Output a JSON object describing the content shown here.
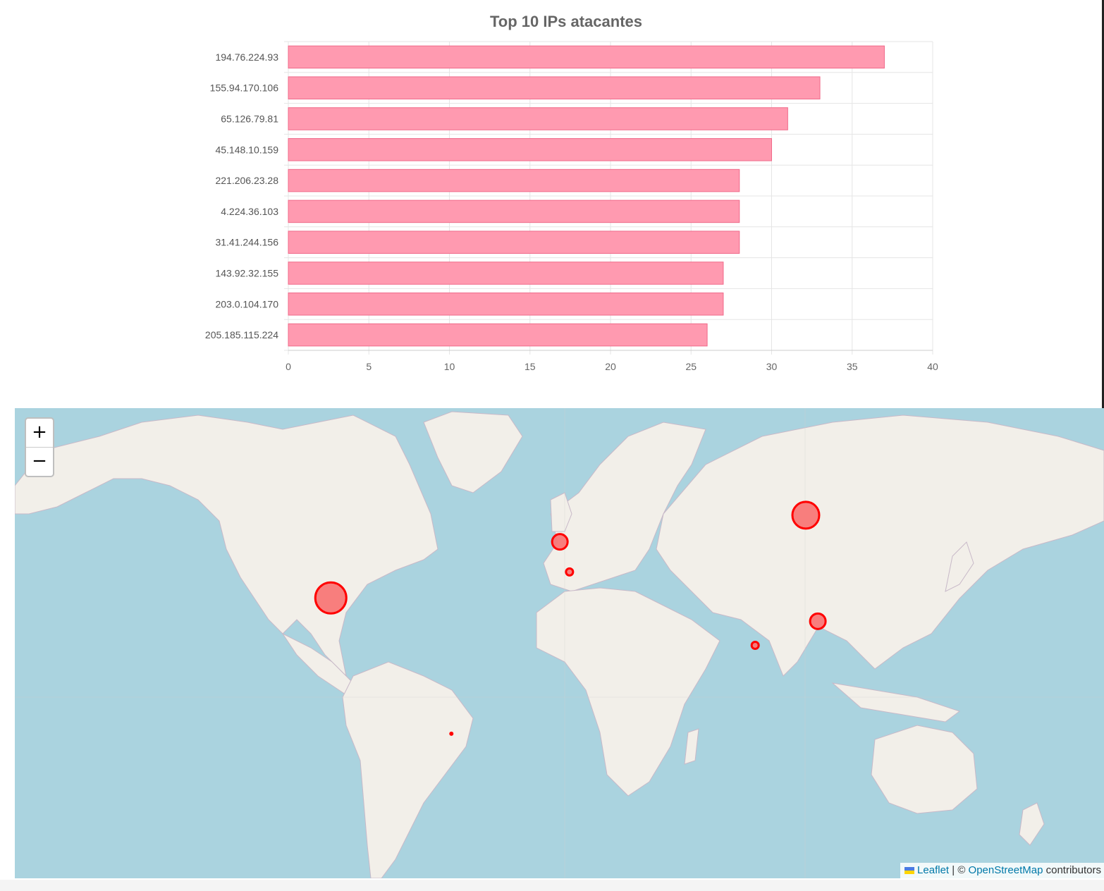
{
  "chart_data": {
    "type": "bar",
    "orientation": "horizontal",
    "title": "Top 10 IPs atacantes",
    "categories": [
      "194.76.224.93",
      "155.94.170.106",
      "65.126.79.81",
      "45.148.10.159",
      "221.206.23.28",
      "4.224.36.103",
      "31.41.244.156",
      "143.92.32.155",
      "203.0.104.170",
      "205.185.115.224"
    ],
    "values": [
      37,
      33,
      31,
      30,
      28,
      28,
      28,
      27,
      27,
      26
    ],
    "xlim": [
      0,
      40
    ],
    "xticks": [
      "0",
      "5",
      "10",
      "15",
      "20",
      "25",
      "30",
      "35",
      "40"
    ],
    "grid": true,
    "bar_fill": "#ff9ab0",
    "bar_stroke": "#f06a8a",
    "legend": false
  },
  "map": {
    "zoom_in_label": "+",
    "zoom_out_label": "−",
    "attribution": {
      "leaflet": "Leaflet",
      "separator": " | © ",
      "osm": "OpenStreetMap",
      "suffix": " contributors"
    },
    "marker_color": "#ff0000",
    "marker_fill": "#f87777",
    "markers": [
      {
        "name": "united-states",
        "lat": 38,
        "lon": -97,
        "size": "large"
      },
      {
        "name": "russia",
        "lat": 60,
        "lon": 100,
        "size": "medium"
      },
      {
        "name": "china",
        "lat": 30,
        "lon": 105,
        "size": "small"
      },
      {
        "name": "united-kingdom",
        "lat": 54,
        "lon": -2,
        "size": "small"
      },
      {
        "name": "france",
        "lat": 46,
        "lon": 2,
        "size": "tiny"
      },
      {
        "name": "india",
        "lat": 21,
        "lon": 79,
        "size": "tiny"
      },
      {
        "name": "brazil",
        "lat": -15,
        "lon": -47,
        "size": "dot"
      }
    ]
  }
}
